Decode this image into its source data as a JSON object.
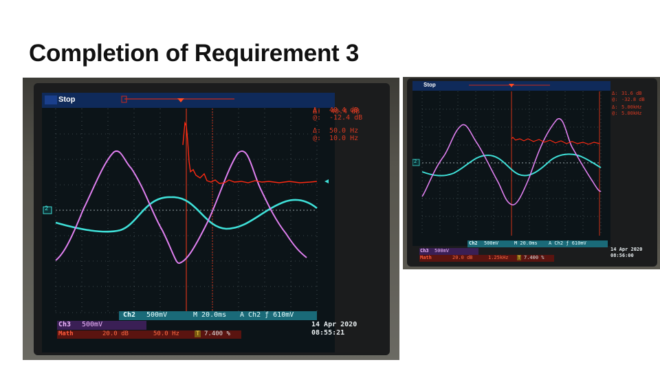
{
  "slide": {
    "title": "Completion of Requirement 3"
  },
  "scope_main": {
    "run_state": "Stop",
    "ch2_marker": "2",
    "cursor_1_label": "Δ:",
    "cursor_1_value": "40.4 dB",
    "cursor_2_label": "@:",
    "cursor_2_value": "-12.4 dB",
    "cursor_3_label": "Δ:",
    "cursor_3_value": "50.0 Hz",
    "cursor_4_label": "@:",
    "cursor_4_value": "10.0 Hz",
    "ch2_label": "Ch2",
    "ch2_scale": "500mV",
    "timebase": "M 20.0ms",
    "trigger": "A  Ch2  ƒ  610mV",
    "ch3_label": "Ch3",
    "ch3_scale": "500mV",
    "math_label": "Math",
    "math_scale": "20.0 dB",
    "math_freq": "50.0 Hz",
    "math_marker": "T",
    "math_percent": "7.400 %",
    "date": "14 Apr 2020",
    "time": "08:55:21",
    "colors": {
      "ch3": "#e080f0",
      "ch2": "#3fe0d8",
      "math": "#ff2a12",
      "grid": "#8a9aa0"
    }
  },
  "scope_side": {
    "run_state": "Stop",
    "ch2_marker": "2",
    "cursor_1_label": "Δ:",
    "cursor_1_value": "31.6 dB",
    "cursor_2_label": "@:",
    "cursor_2_value": "-32.8 dB",
    "cursor_3_label": "Δ:",
    "cursor_3_value": "5.00kHz",
    "cursor_4_label": "@:",
    "cursor_4_value": "5.00kHz",
    "ch2_label": "Ch2",
    "ch2_scale": "500mV",
    "timebase": "M 20.0ms",
    "trigger": "A  Ch2  ƒ  610mV",
    "ch3_label": "Ch3",
    "ch3_scale": "500mV",
    "math_label": "Math",
    "math_scale": "20.0 dB",
    "math_freq": "1.25kHz",
    "math_marker": "T",
    "math_percent": "7.400 %",
    "date": "14 Apr 2020",
    "time": "08:56:00"
  }
}
